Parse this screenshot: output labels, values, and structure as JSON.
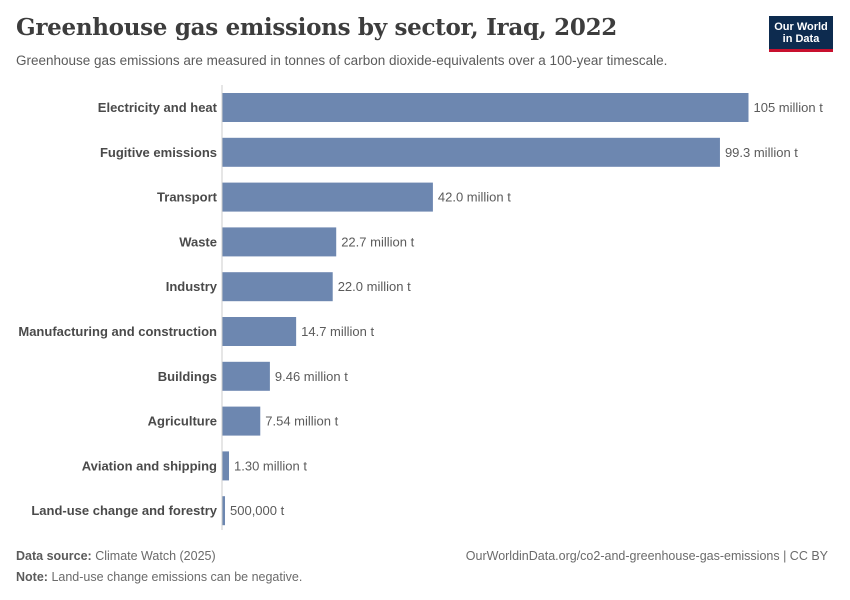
{
  "header": {
    "title": "Greenhouse gas emissions by sector, Iraq, 2022",
    "subtitle": "Greenhouse gas emissions are measured in tonnes of carbon dioxide-equivalents over a 100-year timescale.",
    "logo_line1": "Our World",
    "logo_line2": "in Data"
  },
  "footer": {
    "source_label": "Data source:",
    "source_value": "Climate Watch (2025)",
    "note_label": "Note:",
    "note_value": "Land-use change emissions can be negative.",
    "license": "OurWorldinData.org/co2-and-greenhouse-gas-emissions | CC BY"
  },
  "colors": {
    "bar": "#6d87b0",
    "logo_bg": "#0d2b4f",
    "logo_accent": "#c8102e"
  },
  "chart_data": {
    "type": "bar",
    "orientation": "horizontal",
    "unit": "tonnes CO2e",
    "categories": [
      "Electricity and heat",
      "Fugitive emissions",
      "Transport",
      "Waste",
      "Industry",
      "Manufacturing and construction",
      "Buildings",
      "Agriculture",
      "Aviation and shipping",
      "Land-use change and forestry"
    ],
    "values": [
      105000000,
      99300000,
      42000000,
      22700000,
      22000000,
      14700000,
      9460000,
      7540000,
      1300000,
      500000
    ],
    "labels": [
      "105 million t",
      "99.3 million t",
      "42.0 million t",
      "22.7 million t",
      "22.0 million t",
      "14.7 million t",
      "9.46 million t",
      "7.54 million t",
      "1.30 million t",
      "500,000 t"
    ],
    "xlim": [
      0,
      105000000
    ],
    "grid": false
  }
}
